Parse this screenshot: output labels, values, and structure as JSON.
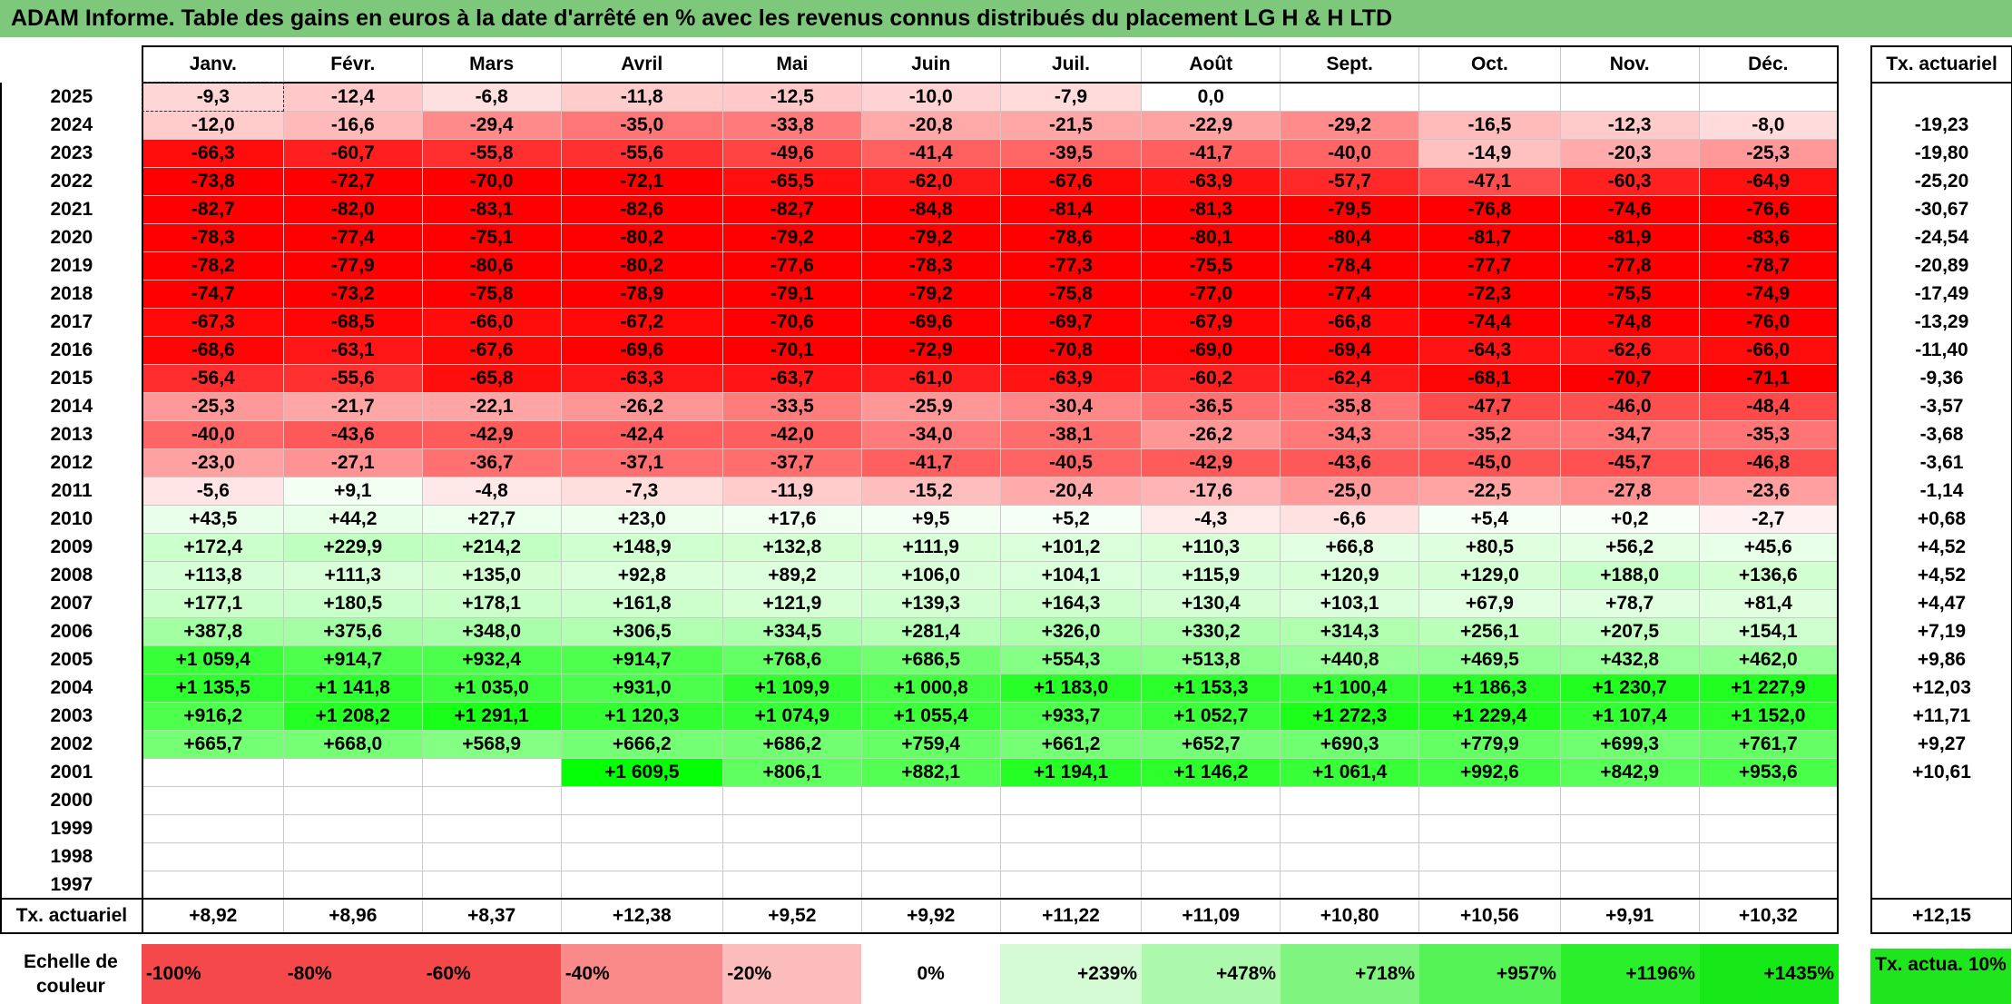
{
  "title": "ADAM Informe. Table des gains en euros à la date d'arrêté en % avec les revenus connus distribués du placement LG H & H LTD",
  "months": [
    "Janv.",
    "Févr.",
    "Mars",
    "Avril",
    "Mai",
    "Juin",
    "Juil.",
    "Août",
    "Sept.",
    "Oct.",
    "Nov.",
    "Déc."
  ],
  "side_header": "Tx. actuariel",
  "rows": [
    {
      "year": "2025",
      "values": [
        "-9,3",
        "-12,4",
        "-6,8",
        "-11,8",
        "-12,5",
        "-10,0",
        "-7,9",
        "0,0",
        "",
        "",
        "",
        ""
      ],
      "rate": ""
    },
    {
      "year": "2024",
      "values": [
        "-12,0",
        "-16,6",
        "-29,4",
        "-35,0",
        "-33,8",
        "-20,8",
        "-21,5",
        "-22,9",
        "-29,2",
        "-16,5",
        "-12,3",
        "-8,0"
      ],
      "rate": "-19,23"
    },
    {
      "year": "2023",
      "values": [
        "-66,3",
        "-60,7",
        "-55,8",
        "-55,6",
        "-49,6",
        "-41,4",
        "-39,5",
        "-41,7",
        "-40,0",
        "-14,9",
        "-20,3",
        "-25,3"
      ],
      "rate": "-19,80"
    },
    {
      "year": "2022",
      "values": [
        "-73,8",
        "-72,7",
        "-70,0",
        "-72,1",
        "-65,5",
        "-62,0",
        "-67,6",
        "-63,9",
        "-57,7",
        "-47,1",
        "-60,3",
        "-64,9"
      ],
      "rate": "-25,20"
    },
    {
      "year": "2021",
      "values": [
        "-82,7",
        "-82,0",
        "-83,1",
        "-82,6",
        "-82,7",
        "-84,8",
        "-81,4",
        "-81,3",
        "-79,5",
        "-76,8",
        "-74,6",
        "-76,6"
      ],
      "rate": "-30,67"
    },
    {
      "year": "2020",
      "values": [
        "-78,3",
        "-77,4",
        "-75,1",
        "-80,2",
        "-79,2",
        "-79,2",
        "-78,6",
        "-80,1",
        "-80,4",
        "-81,7",
        "-81,9",
        "-83,6"
      ],
      "rate": "-24,54"
    },
    {
      "year": "2019",
      "values": [
        "-78,2",
        "-77,9",
        "-80,6",
        "-80,2",
        "-77,6",
        "-78,3",
        "-77,3",
        "-75,5",
        "-78,4",
        "-77,7",
        "-77,8",
        "-78,7"
      ],
      "rate": "-20,89"
    },
    {
      "year": "2018",
      "values": [
        "-74,7",
        "-73,2",
        "-75,8",
        "-78,9",
        "-79,1",
        "-79,2",
        "-75,8",
        "-77,0",
        "-77,4",
        "-72,3",
        "-75,5",
        "-74,9"
      ],
      "rate": "-17,49"
    },
    {
      "year": "2017",
      "values": [
        "-67,3",
        "-68,5",
        "-66,0",
        "-67,2",
        "-70,6",
        "-69,6",
        "-69,7",
        "-67,9",
        "-66,8",
        "-74,4",
        "-74,8",
        "-76,0"
      ],
      "rate": "-13,29"
    },
    {
      "year": "2016",
      "values": [
        "-68,6",
        "-63,1",
        "-67,6",
        "-69,6",
        "-70,1",
        "-72,9",
        "-70,8",
        "-69,0",
        "-69,4",
        "-64,3",
        "-62,6",
        "-66,0"
      ],
      "rate": "-11,40"
    },
    {
      "year": "2015",
      "values": [
        "-56,4",
        "-55,6",
        "-65,8",
        "-63,3",
        "-63,7",
        "-61,0",
        "-63,9",
        "-60,2",
        "-62,4",
        "-68,1",
        "-70,7",
        "-71,1"
      ],
      "rate": "-9,36"
    },
    {
      "year": "2014",
      "values": [
        "-25,3",
        "-21,7",
        "-22,1",
        "-26,2",
        "-33,5",
        "-25,9",
        "-30,4",
        "-36,5",
        "-35,8",
        "-47,7",
        "-46,0",
        "-48,4"
      ],
      "rate": "-3,57"
    },
    {
      "year": "2013",
      "values": [
        "-40,0",
        "-43,6",
        "-42,9",
        "-42,4",
        "-42,0",
        "-34,0",
        "-38,1",
        "-26,2",
        "-34,3",
        "-35,2",
        "-34,7",
        "-35,3"
      ],
      "rate": "-3,68"
    },
    {
      "year": "2012",
      "values": [
        "-23,0",
        "-27,1",
        "-36,7",
        "-37,1",
        "-37,7",
        "-41,7",
        "-40,5",
        "-42,9",
        "-43,6",
        "-45,0",
        "-45,7",
        "-46,8"
      ],
      "rate": "-3,61"
    },
    {
      "year": "2011",
      "values": [
        "-5,6",
        "+9,1",
        "-4,8",
        "-7,3",
        "-11,9",
        "-15,2",
        "-20,4",
        "-17,6",
        "-25,0",
        "-22,5",
        "-27,8",
        "-23,6"
      ],
      "rate": "-1,14"
    },
    {
      "year": "2010",
      "values": [
        "+43,5",
        "+44,2",
        "+27,7",
        "+23,0",
        "+17,6",
        "+9,5",
        "+5,2",
        "-4,3",
        "-6,6",
        "+5,4",
        "+0,2",
        "-2,7"
      ],
      "rate": "+0,68"
    },
    {
      "year": "2009",
      "values": [
        "+172,4",
        "+229,9",
        "+214,2",
        "+148,9",
        "+132,8",
        "+111,9",
        "+101,2",
        "+110,3",
        "+66,8",
        "+80,5",
        "+56,2",
        "+45,6"
      ],
      "rate": "+4,52"
    },
    {
      "year": "2008",
      "values": [
        "+113,8",
        "+111,3",
        "+135,0",
        "+92,8",
        "+89,2",
        "+106,0",
        "+104,1",
        "+115,9",
        "+120,9",
        "+129,0",
        "+188,0",
        "+136,6"
      ],
      "rate": "+4,52"
    },
    {
      "year": "2007",
      "values": [
        "+177,1",
        "+180,5",
        "+178,1",
        "+161,8",
        "+121,9",
        "+139,3",
        "+164,3",
        "+130,4",
        "+103,1",
        "+67,9",
        "+78,7",
        "+81,4"
      ],
      "rate": "+4,47"
    },
    {
      "year": "2006",
      "values": [
        "+387,8",
        "+375,6",
        "+348,0",
        "+306,5",
        "+334,5",
        "+281,4",
        "+326,0",
        "+330,2",
        "+314,3",
        "+256,1",
        "+207,5",
        "+154,1"
      ],
      "rate": "+7,19"
    },
    {
      "year": "2005",
      "values": [
        "+1 059,4",
        "+914,7",
        "+932,4",
        "+914,7",
        "+768,6",
        "+686,5",
        "+554,3",
        "+513,8",
        "+440,8",
        "+469,5",
        "+432,8",
        "+462,0"
      ],
      "rate": "+9,86"
    },
    {
      "year": "2004",
      "values": [
        "+1 135,5",
        "+1 141,8",
        "+1 035,0",
        "+931,0",
        "+1 109,9",
        "+1 000,8",
        "+1 183,0",
        "+1 153,3",
        "+1 100,4",
        "+1 186,3",
        "+1 230,7",
        "+1 227,9"
      ],
      "rate": "+12,03"
    },
    {
      "year": "2003",
      "values": [
        "+916,2",
        "+1 208,2",
        "+1 291,1",
        "+1 120,3",
        "+1 074,9",
        "+1 055,4",
        "+933,7",
        "+1 052,7",
        "+1 272,3",
        "+1 229,4",
        "+1 107,4",
        "+1 152,0"
      ],
      "rate": "+11,71"
    },
    {
      "year": "2002",
      "values": [
        "+665,7",
        "+668,0",
        "+568,9",
        "+666,2",
        "+686,2",
        "+759,4",
        "+661,2",
        "+652,7",
        "+690,3",
        "+779,9",
        "+699,3",
        "+761,7"
      ],
      "rate": "+9,27"
    },
    {
      "year": "2001",
      "values": [
        "",
        "",
        "",
        "+1 609,5",
        "+806,1",
        "+882,1",
        "+1 194,1",
        "+1 146,2",
        "+1 061,4",
        "+992,6",
        "+842,9",
        "+953,6"
      ],
      "rate": "+10,61"
    },
    {
      "year": "2000",
      "values": [
        "",
        "",
        "",
        "",
        "",
        "",
        "",
        "",
        "",
        "",
        "",
        ""
      ],
      "rate": ""
    },
    {
      "year": "1999",
      "values": [
        "",
        "",
        "",
        "",
        "",
        "",
        "",
        "",
        "",
        "",
        "",
        ""
      ],
      "rate": ""
    },
    {
      "year": "1998",
      "values": [
        "",
        "",
        "",
        "",
        "",
        "",
        "",
        "",
        "",
        "",
        "",
        ""
      ],
      "rate": ""
    },
    {
      "year": "1997",
      "values": [
        "",
        "",
        "",
        "",
        "",
        "",
        "",
        "",
        "",
        "",
        "",
        ""
      ],
      "rate": ""
    }
  ],
  "footer": {
    "label": "Tx. actuariel",
    "values": [
      "+8,92",
      "+8,96",
      "+8,37",
      "+12,38",
      "+9,52",
      "+9,92",
      "+11,22",
      "+11,09",
      "+10,80",
      "+10,56",
      "+9,91",
      "+10,32"
    ],
    "rate": "+12,15"
  },
  "scale": {
    "label": "Echelle de couleur",
    "items": [
      {
        "text": "-100%",
        "color": "#f5484a",
        "align": "neg"
      },
      {
        "text": "-80%",
        "color": "#f5484a",
        "align": "neg"
      },
      {
        "text": "-60%",
        "color": "#f5484a",
        "align": "neg"
      },
      {
        "text": "-40%",
        "color": "#fa8a8a",
        "align": "neg"
      },
      {
        "text": "-20%",
        "color": "#fdbcbc",
        "align": "neg"
      },
      {
        "text": "0%",
        "color": "#ffffff",
        "align": "mid"
      },
      {
        "text": "+239%",
        "color": "#d4fbd4",
        "align": "pos"
      },
      {
        "text": "+478%",
        "color": "#acf8ac",
        "align": "pos"
      },
      {
        "text": "+718%",
        "color": "#7ff57f",
        "align": "pos"
      },
      {
        "text": "+957%",
        "color": "#55f255",
        "align": "pos"
      },
      {
        "text": "+1196%",
        "color": "#2bef2b",
        "align": "pos"
      },
      {
        "text": "+1435%",
        "color": "#17e817",
        "align": "pos"
      }
    ],
    "side_text": "Tx. actua. 10%",
    "side_color": "#1ee51e"
  },
  "colors": {
    "title_bar": "#7dc87a",
    "negative_max": "#ff0000",
    "positive_max": "#00ff00"
  }
}
